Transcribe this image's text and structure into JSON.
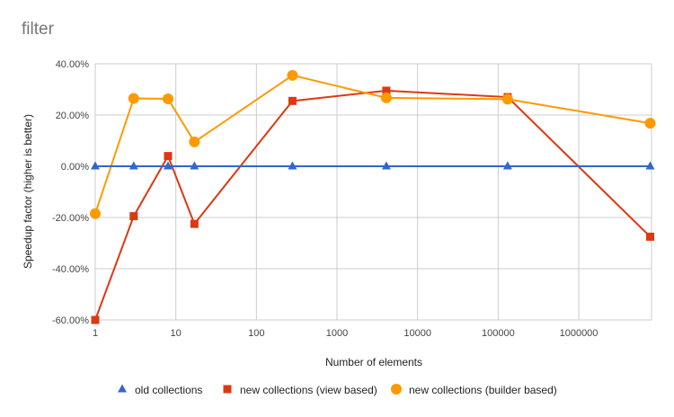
{
  "chart_data": {
    "type": "line",
    "title": "filter",
    "xlabel": "Number of elements",
    "ylabel": "Speedup factor (higher is better)",
    "x_scale": "log10",
    "xlim": [
      1,
      8000000
    ],
    "ylim": [
      -0.6,
      0.4
    ],
    "y_ticks": [
      -0.6,
      -0.4,
      -0.2,
      0,
      0.2,
      0.4
    ],
    "y_tick_labels": [
      "-60.00%",
      "-40.00%",
      "-20.00%",
      "0.00%",
      "20.00%",
      "40.00%"
    ],
    "x_ticks": [
      1,
      10,
      100,
      1000,
      10000,
      100000,
      1000000
    ],
    "x_tick_labels": [
      "1",
      "10",
      "100",
      "1000",
      "10000",
      "100000",
      "1000000"
    ],
    "grid": true,
    "legend_position": "bottom",
    "x": [
      1,
      3,
      8,
      17,
      280,
      4096,
      131072,
      7700000
    ],
    "series": [
      {
        "name": "old collections",
        "marker": "triangle",
        "color": "#3366cc",
        "x": [
          1,
          3,
          8,
          17,
          280,
          4096,
          131072,
          7700000
        ],
        "values": [
          0,
          0,
          0,
          0,
          0,
          0,
          0,
          0
        ]
      },
      {
        "name": "new collections (view based)",
        "marker": "square",
        "color": "#dc3912",
        "x": [
          1,
          3,
          8,
          17,
          280,
          4096,
          131072,
          7700000
        ],
        "values": [
          -0.6,
          -0.195,
          0.04,
          -0.225,
          0.255,
          0.295,
          0.27,
          -0.275
        ]
      },
      {
        "name": "new collections (builder based)",
        "marker": "circle",
        "color": "#ff9900",
        "x": [
          1,
          3,
          8,
          17,
          280,
          4096,
          131072,
          7700000
        ],
        "values": [
          -0.185,
          0.265,
          0.263,
          0.095,
          0.355,
          0.267,
          0.262,
          0.168
        ]
      }
    ]
  }
}
